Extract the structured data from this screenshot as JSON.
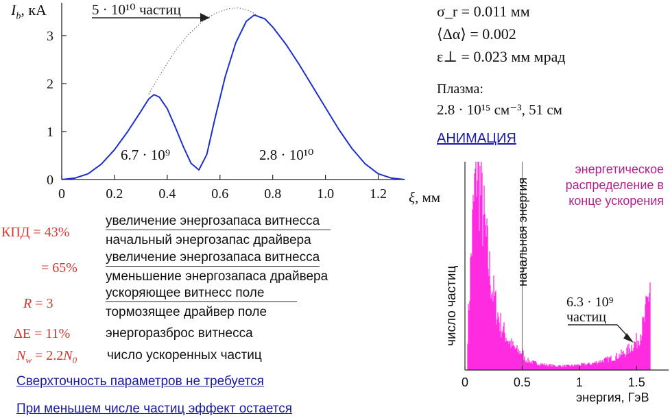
{
  "chart_data": [
    {
      "type": "line",
      "ylabel": "I_b, кА",
      "xlabel": "ξ, мм",
      "xlim": [
        0,
        1.3
      ],
      "ylim": [
        0,
        3.6
      ],
      "x_ticks": [
        "0",
        "0.2",
        "0.4",
        "0.6",
        "0.8",
        "1.0",
        "1.2"
      ],
      "y_ticks": [
        "0",
        "1",
        "2",
        "3"
      ],
      "series": [
        {
          "style": "solid",
          "color": "#1a2fc9",
          "points": [
            [
              0.0,
              0.0
            ],
            [
              0.05,
              0.03
            ],
            [
              0.1,
              0.12
            ],
            [
              0.15,
              0.32
            ],
            [
              0.2,
              0.62
            ],
            [
              0.25,
              1.0
            ],
            [
              0.3,
              1.42
            ],
            [
              0.33,
              1.68
            ],
            [
              0.35,
              1.77
            ],
            [
              0.37,
              1.72
            ],
            [
              0.4,
              1.48
            ],
            [
              0.43,
              1.1
            ],
            [
              0.46,
              0.7
            ],
            [
              0.49,
              0.34
            ],
            [
              0.52,
              0.2
            ],
            [
              0.55,
              0.52
            ],
            [
              0.58,
              1.25
            ],
            [
              0.62,
              2.15
            ],
            [
              0.66,
              2.85
            ],
            [
              0.7,
              3.3
            ],
            [
              0.73,
              3.43
            ],
            [
              0.77,
              3.35
            ],
            [
              0.8,
              3.18
            ],
            [
              0.85,
              2.82
            ],
            [
              0.9,
              2.4
            ],
            [
              0.95,
              1.95
            ],
            [
              1.0,
              1.5
            ],
            [
              1.05,
              1.05
            ],
            [
              1.1,
              0.65
            ],
            [
              1.15,
              0.33
            ],
            [
              1.2,
              0.12
            ],
            [
              1.25,
              0.03
            ],
            [
              1.3,
              0.0
            ]
          ]
        },
        {
          "style": "dotted",
          "color": "#777777",
          "points": [
            [
              0.33,
              1.78
            ],
            [
              0.38,
              2.25
            ],
            [
              0.43,
              2.68
            ],
            [
              0.48,
              3.02
            ],
            [
              0.53,
              3.28
            ],
            [
              0.58,
              3.46
            ],
            [
              0.63,
              3.56
            ],
            [
              0.67,
              3.58
            ],
            [
              0.71,
              3.52
            ],
            [
              0.74,
              3.43
            ]
          ]
        }
      ],
      "annotations": {
        "total": "5 · 10¹⁰ частиц",
        "left_bunch": "6.7 · 10⁹",
        "right_bunch": "2.8 · 10¹⁰"
      }
    },
    {
      "type": "bar",
      "ylabel": "число частиц",
      "xlabel": "энергия, ГэВ",
      "xlim": [
        0,
        1.75
      ],
      "ylim": [
        0,
        1.0
      ],
      "x_ticks": [
        "0",
        "0.5",
        "1",
        "1.5"
      ],
      "color": "#ff2be0",
      "profile": [
        [
          0.02,
          0.18
        ],
        [
          0.05,
          0.55
        ],
        [
          0.08,
          0.85
        ],
        [
          0.1,
          1.0
        ],
        [
          0.12,
          0.92
        ],
        [
          0.15,
          0.78
        ],
        [
          0.18,
          0.62
        ],
        [
          0.21,
          0.48
        ],
        [
          0.24,
          0.38
        ],
        [
          0.27,
          0.3
        ],
        [
          0.3,
          0.23
        ],
        [
          0.34,
          0.18
        ],
        [
          0.38,
          0.14
        ],
        [
          0.42,
          0.11
        ],
        [
          0.46,
          0.09
        ],
        [
          0.5,
          0.085
        ],
        [
          0.52,
          0.05
        ],
        [
          0.6,
          0.035
        ],
        [
          0.7,
          0.025
        ],
        [
          0.8,
          0.02
        ],
        [
          0.9,
          0.02
        ],
        [
          1.0,
          0.025
        ],
        [
          1.1,
          0.03
        ],
        [
          1.2,
          0.045
        ],
        [
          1.3,
          0.06
        ],
        [
          1.4,
          0.085
        ],
        [
          1.5,
          0.14
        ],
        [
          1.56,
          0.22
        ],
        [
          1.6,
          0.35
        ],
        [
          1.62,
          0.45
        ]
      ],
      "marker_label": "начальная энергия",
      "marker_x": 0.5,
      "legend": "энергетическое распределение в конце ускорения",
      "annotation": "6.3 · 10⁹ частиц"
    }
  ],
  "params": {
    "sigma": "σ_r = 0.011 мм",
    "dalpha": "⟨Δα⟩ = 0.002",
    "emit": "ε⊥ = 0.023 мм мрад",
    "plasma_title": "Плазма:",
    "plasma_value": "2.8 · 10¹⁵ см⁻³,  51 см"
  },
  "animation_link": "АНИМАЦИЯ",
  "efficiency": [
    {
      "label": "КПД = 43%",
      "top": "увеличение энергозапаса витнесса",
      "bottom": "начальный энергозапас драйвера"
    },
    {
      "label": "= 65%",
      "top": "увеличение энергозапаса витнесса",
      "bottom": "уменьшение энергозапаса драйвера"
    },
    {
      "label": "R = 3",
      "top": "ускоряющее витнесс поле",
      "bottom": "тормозящее драйвер поле"
    },
    {
      "label": "ΔE = 11%",
      "text": "энергоразброс витнесса"
    },
    {
      "label": "N_w = 2.2N_0",
      "text": "число ускоренных частиц"
    }
  ],
  "links": [
    "Сверхточность параметров не требуется",
    "При меньшем числе частиц эффект остается"
  ]
}
